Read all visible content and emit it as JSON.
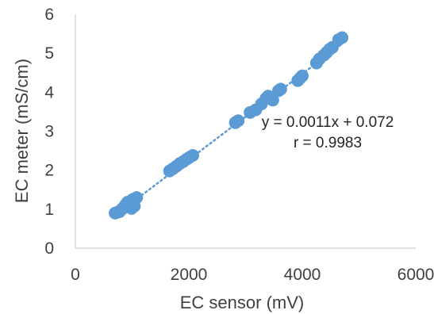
{
  "chart_data": {
    "type": "scatter",
    "title": "",
    "xlabel": "EC sensor (mV)",
    "ylabel": "EC meter (mS/cm)",
    "xlim": [
      0,
      6000
    ],
    "ylim": [
      0,
      6
    ],
    "x_ticks": [
      "0",
      "2000",
      "4000",
      "6000"
    ],
    "y_ticks": [
      "0",
      "1",
      "2",
      "3",
      "4",
      "5",
      "6"
    ],
    "grid": false,
    "legend": "none",
    "series": [
      {
        "marker_color": "#5b9bd5",
        "trendline": {
          "type": "linear",
          "style": "dotted",
          "color": "#5b9bd5",
          "slope": 0.0011,
          "intercept": 0.072
        },
        "points": [
          [
            700,
            0.9
          ],
          [
            740,
            0.92
          ],
          [
            780,
            0.94
          ],
          [
            820,
            1.0
          ],
          [
            860,
            1.06
          ],
          [
            890,
            1.12
          ],
          [
            920,
            1.18
          ],
          [
            960,
            1.05
          ],
          [
            990,
            1.02
          ],
          [
            1010,
            1.25
          ],
          [
            1040,
            1.08
          ],
          [
            1080,
            1.3
          ],
          [
            1660,
            1.98
          ],
          [
            1720,
            2.04
          ],
          [
            1780,
            2.1
          ],
          [
            1840,
            2.17
          ],
          [
            1900,
            2.22
          ],
          [
            1960,
            2.28
          ],
          [
            2010,
            2.33
          ],
          [
            2070,
            2.38
          ],
          [
            2820,
            3.22
          ],
          [
            2870,
            3.27
          ],
          [
            3080,
            3.48
          ],
          [
            3180,
            3.55
          ],
          [
            3280,
            3.7
          ],
          [
            3360,
            3.84
          ],
          [
            3400,
            3.9
          ],
          [
            3480,
            3.8
          ],
          [
            3580,
            4.04
          ],
          [
            3620,
            4.08
          ],
          [
            3920,
            4.3
          ],
          [
            3960,
            4.36
          ],
          [
            4000,
            4.42
          ],
          [
            4250,
            4.75
          ],
          [
            4300,
            4.85
          ],
          [
            4380,
            4.95
          ],
          [
            4430,
            5.02
          ],
          [
            4480,
            5.1
          ],
          [
            4530,
            5.15
          ],
          [
            4640,
            5.35
          ],
          [
            4700,
            5.4
          ]
        ]
      }
    ],
    "annotations": [
      "y = 0.0011x + 0.072",
      "r = 0.9983"
    ]
  }
}
